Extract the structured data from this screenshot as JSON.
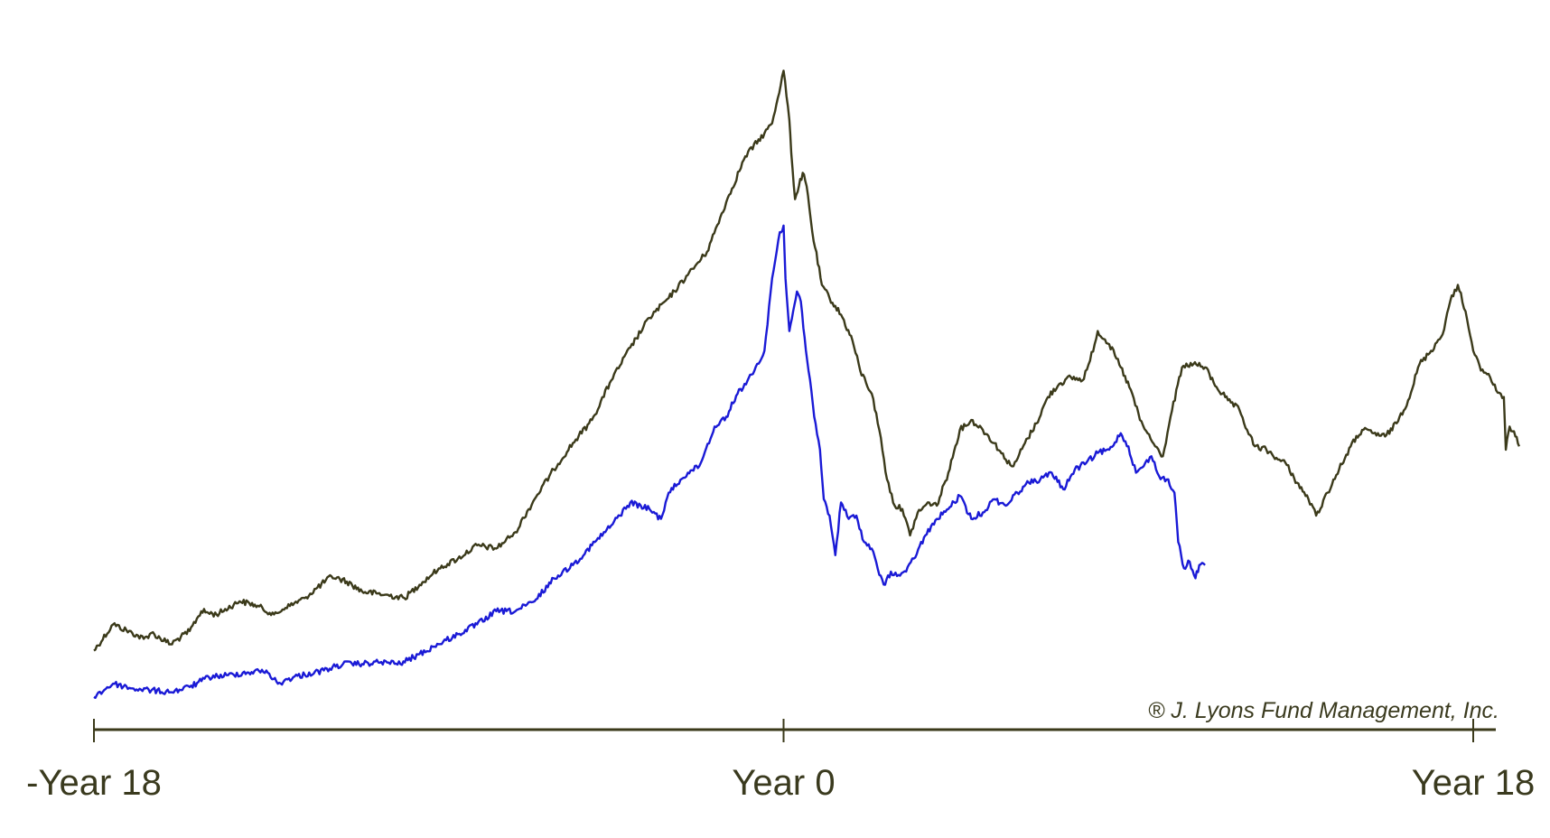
{
  "chart_data": {
    "type": "line",
    "title": "",
    "xlabel": "",
    "ylabel": "",
    "xlim": [
      -18,
      18.6
    ],
    "ylim": [
      0,
      100
    ],
    "x_ticks": [
      {
        "x": -18,
        "label": "-Year 18"
      },
      {
        "x": 0,
        "label": "Year 0"
      },
      {
        "x": 18,
        "label": "Year 18"
      }
    ],
    "grid": false,
    "legend": "none",
    "annotation": "® J. Lyons Fund Management, Inc.",
    "series": [
      {
        "color": "#3b3a1a",
        "points": [
          [
            -18.0,
            9.5
          ],
          [
            -17.5,
            13.5
          ],
          [
            -17.0,
            12.2
          ],
          [
            -16.7,
            11.3
          ],
          [
            -16.5,
            12.2
          ],
          [
            -16.0,
            10.5
          ],
          [
            -15.5,
            12.5
          ],
          [
            -15.2,
            15.5
          ],
          [
            -14.8,
            15.0
          ],
          [
            -14.2,
            17.0
          ],
          [
            -13.8,
            16.5
          ],
          [
            -13.3,
            15.0
          ],
          [
            -13.0,
            16.0
          ],
          [
            -12.5,
            17.5
          ],
          [
            -11.8,
            20.8
          ],
          [
            -11.4,
            20.0
          ],
          [
            -11.0,
            18.5
          ],
          [
            -10.4,
            18.0
          ],
          [
            -9.9,
            17.5
          ],
          [
            -9.5,
            19.5
          ],
          [
            -9.0,
            22.0
          ],
          [
            -8.5,
            23.5
          ],
          [
            -8.0,
            25.5
          ],
          [
            -7.5,
            25.0
          ],
          [
            -7.0,
            27.5
          ],
          [
            -6.5,
            32.5
          ],
          [
            -6.0,
            37.0
          ],
          [
            -5.5,
            41.0
          ],
          [
            -5.0,
            44.5
          ],
          [
            -4.5,
            50.5
          ],
          [
            -4.0,
            55.5
          ],
          [
            -3.5,
            60.0
          ],
          [
            -3.0,
            63.0
          ],
          [
            -2.5,
            66.5
          ],
          [
            -2.0,
            70.0
          ],
          [
            -1.5,
            77.5
          ],
          [
            -1.0,
            84.5
          ],
          [
            -0.5,
            88.0
          ],
          [
            -0.3,
            89.5
          ],
          [
            0.0,
            97.5
          ],
          [
            0.15,
            90.0
          ],
          [
            0.2,
            85.0
          ],
          [
            0.3,
            78.0
          ],
          [
            0.4,
            80.0
          ],
          [
            0.5,
            82.0
          ],
          [
            0.6,
            80.0
          ],
          [
            0.75,
            73.0
          ],
          [
            1.0,
            65.0
          ],
          [
            1.2,
            63.0
          ],
          [
            1.5,
            60.5
          ],
          [
            1.8,
            56.5
          ],
          [
            2.0,
            52.0
          ],
          [
            2.3,
            48.5
          ],
          [
            2.5,
            43.0
          ],
          [
            2.7,
            35.5
          ],
          [
            2.9,
            31.5
          ],
          [
            3.1,
            31.0
          ],
          [
            3.3,
            27.0
          ],
          [
            3.5,
            30.5
          ],
          [
            3.8,
            32.0
          ],
          [
            4.0,
            31.5
          ],
          [
            4.3,
            36.5
          ],
          [
            4.6,
            43.0
          ],
          [
            4.9,
            44.5
          ],
          [
            5.2,
            43.0
          ],
          [
            5.5,
            41.0
          ],
          [
            5.8,
            38.5
          ],
          [
            6.0,
            37.5
          ],
          [
            6.3,
            41.0
          ],
          [
            6.6,
            44.0
          ],
          [
            6.9,
            48.0
          ],
          [
            7.2,
            50.0
          ],
          [
            7.5,
            51.0
          ],
          [
            7.8,
            50.5
          ],
          [
            8.0,
            53.5
          ],
          [
            8.2,
            58.0
          ],
          [
            8.5,
            56.0
          ],
          [
            8.8,
            52.5
          ],
          [
            9.1,
            48.5
          ],
          [
            9.3,
            44.5
          ],
          [
            9.5,
            42.5
          ],
          [
            9.7,
            40.5
          ],
          [
            9.9,
            39.0
          ],
          [
            10.1,
            45.0
          ],
          [
            10.4,
            52.5
          ],
          [
            10.7,
            53.0
          ],
          [
            11.0,
            52.5
          ],
          [
            11.3,
            49.5
          ],
          [
            11.6,
            47.5
          ],
          [
            11.9,
            46.0
          ],
          [
            12.1,
            43.0
          ],
          [
            12.3,
            40.5
          ],
          [
            12.6,
            40.0
          ],
          [
            12.9,
            38.5
          ],
          [
            13.1,
            38.0
          ],
          [
            13.4,
            35.0
          ],
          [
            13.7,
            32.5
          ],
          [
            13.9,
            30.0
          ],
          [
            14.2,
            33.5
          ],
          [
            14.5,
            37.0
          ],
          [
            14.8,
            40.5
          ],
          [
            15.1,
            43.0
          ],
          [
            15.4,
            42.5
          ],
          [
            15.7,
            42.0
          ],
          [
            16.0,
            44.0
          ],
          [
            16.3,
            47.5
          ],
          [
            16.6,
            53.0
          ],
          [
            16.9,
            55.0
          ],
          [
            17.2,
            57.5
          ],
          [
            17.4,
            62.5
          ],
          [
            17.6,
            65.0
          ],
          [
            17.8,
            61.0
          ],
          [
            18.0,
            55.0
          ],
          [
            18.2,
            52.0
          ],
          [
            18.4,
            51.5
          ],
          [
            18.6,
            49.0
          ],
          [
            18.8,
            48.0
          ],
          [
            18.85,
            40.0
          ],
          [
            18.95,
            43.5
          ],
          [
            19.1,
            42.0
          ],
          [
            19.2,
            40.5
          ]
        ]
      },
      {
        "color": "#1a1ad6",
        "points": [
          [
            -18.0,
            2.5
          ],
          [
            -17.5,
            4.5
          ],
          [
            -17.0,
            3.8
          ],
          [
            -16.5,
            3.5
          ],
          [
            -16.0,
            3.2
          ],
          [
            -15.5,
            4.0
          ],
          [
            -15.0,
            5.5
          ],
          [
            -14.5,
            5.8
          ],
          [
            -14.0,
            6.2
          ],
          [
            -13.5,
            6.5
          ],
          [
            -13.2,
            4.5
          ],
          [
            -12.8,
            5.5
          ],
          [
            -12.0,
            6.5
          ],
          [
            -11.5,
            7.5
          ],
          [
            -11.0,
            7.5
          ],
          [
            -10.5,
            7.8
          ],
          [
            -10.0,
            7.5
          ],
          [
            -9.5,
            9.0
          ],
          [
            -9.0,
            10.5
          ],
          [
            -8.5,
            12.0
          ],
          [
            -8.0,
            13.5
          ],
          [
            -7.5,
            15.5
          ],
          [
            -7.0,
            15.5
          ],
          [
            -6.5,
            17.0
          ],
          [
            -6.0,
            20.5
          ],
          [
            -5.5,
            22.5
          ],
          [
            -5.0,
            25.5
          ],
          [
            -4.5,
            28.5
          ],
          [
            -4.0,
            32.0
          ],
          [
            -3.5,
            31.0
          ],
          [
            -3.2,
            29.5
          ],
          [
            -3.0,
            33.5
          ],
          [
            -2.5,
            36.5
          ],
          [
            -2.2,
            37.5
          ],
          [
            -1.8,
            43.5
          ],
          [
            -1.5,
            45.0
          ],
          [
            -1.2,
            48.5
          ],
          [
            -0.8,
            51.5
          ],
          [
            -0.5,
            55.0
          ],
          [
            -0.3,
            66.0
          ],
          [
            -0.1,
            73.0
          ],
          [
            0.0,
            74.0
          ],
          [
            0.05,
            66.0
          ],
          [
            0.15,
            58.0
          ],
          [
            0.25,
            61.0
          ],
          [
            0.35,
            64.0
          ],
          [
            0.45,
            62.5
          ],
          [
            0.55,
            57.0
          ],
          [
            0.65,
            52.0
          ],
          [
            0.8,
            45.0
          ],
          [
            0.95,
            40.0
          ],
          [
            1.05,
            32.5
          ],
          [
            1.2,
            30.0
          ],
          [
            1.35,
            24.0
          ],
          [
            1.5,
            32.0
          ],
          [
            1.7,
            29.5
          ],
          [
            1.9,
            30.0
          ],
          [
            2.1,
            26.0
          ],
          [
            2.3,
            25.0
          ],
          [
            2.5,
            21.0
          ],
          [
            2.65,
            19.5
          ],
          [
            2.8,
            21.5
          ],
          [
            3.0,
            21.0
          ],
          [
            3.2,
            21.5
          ],
          [
            3.4,
            23.5
          ],
          [
            3.7,
            27.0
          ],
          [
            4.0,
            29.5
          ],
          [
            4.3,
            31.0
          ],
          [
            4.6,
            33.0
          ],
          [
            4.9,
            29.5
          ],
          [
            5.2,
            30.5
          ],
          [
            5.5,
            32.5
          ],
          [
            5.8,
            31.5
          ],
          [
            6.1,
            33.5
          ],
          [
            6.4,
            35.0
          ],
          [
            6.7,
            35.5
          ],
          [
            7.0,
            36.5
          ],
          [
            7.3,
            34.0
          ],
          [
            7.6,
            37.0
          ],
          [
            7.9,
            38.0
          ],
          [
            8.2,
            39.5
          ],
          [
            8.5,
            40.0
          ],
          [
            8.8,
            42.5
          ],
          [
            9.0,
            40.5
          ],
          [
            9.2,
            36.5
          ],
          [
            9.4,
            37.5
          ],
          [
            9.6,
            39.0
          ],
          [
            9.8,
            36.0
          ],
          [
            10.0,
            35.5
          ],
          [
            10.2,
            33.5
          ],
          [
            10.3,
            26.0
          ],
          [
            10.45,
            22.0
          ],
          [
            10.6,
            23.0
          ],
          [
            10.75,
            20.5
          ],
          [
            10.85,
            22.5
          ],
          [
            11.0,
            22.5
          ]
        ]
      }
    ]
  }
}
